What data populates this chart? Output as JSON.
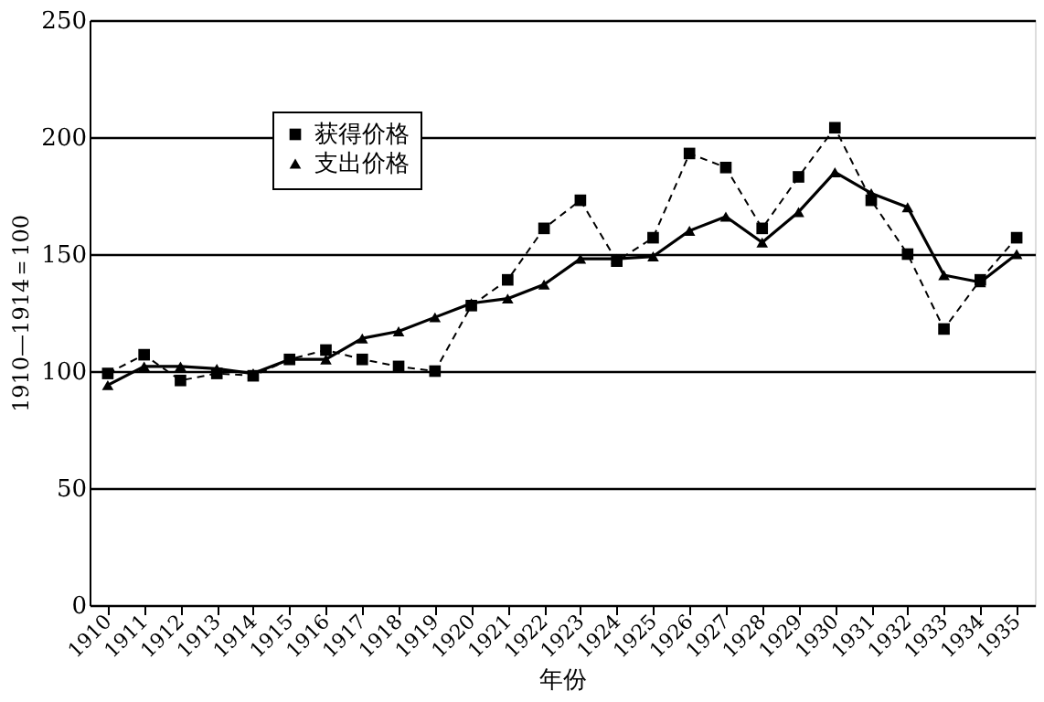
{
  "chart_data": {
    "type": "line",
    "xlabel": "年份",
    "ylabel": "1910—1914＝100",
    "categories": [
      "1910",
      "1911",
      "1912",
      "1913",
      "1914",
      "1915",
      "1916",
      "1917",
      "1918",
      "1919",
      "1920",
      "1921",
      "1922",
      "1923",
      "1924",
      "1925",
      "1926",
      "1927",
      "1928",
      "1929",
      "1930",
      "1931",
      "1932",
      "1933",
      "1934",
      "1935"
    ],
    "series": [
      {
        "name": "获得价格",
        "color": "#000000",
        "marker": "square",
        "line_style": "dashed",
        "values": [
          99,
          107,
          96,
          99,
          98,
          105,
          109,
          105,
          102,
          100,
          128,
          139,
          161,
          173,
          147,
          157,
          193,
          187,
          161,
          183,
          204,
          173,
          150,
          118,
          139,
          157
        ]
      },
      {
        "name": "支出价格",
        "color": "#000000",
        "marker": "triangle",
        "line_style": "solid",
        "values": [
          94,
          102,
          102,
          101,
          99,
          105,
          105,
          114,
          117,
          123,
          129,
          131,
          137,
          148,
          148,
          149,
          160,
          166,
          155,
          168,
          185,
          176,
          170,
          141,
          138,
          150
        ]
      }
    ],
    "ylim": [
      0,
      250
    ],
    "yticks": [
      0,
      50,
      100,
      150,
      200,
      250
    ],
    "grid": "y",
    "legend": "top left"
  }
}
